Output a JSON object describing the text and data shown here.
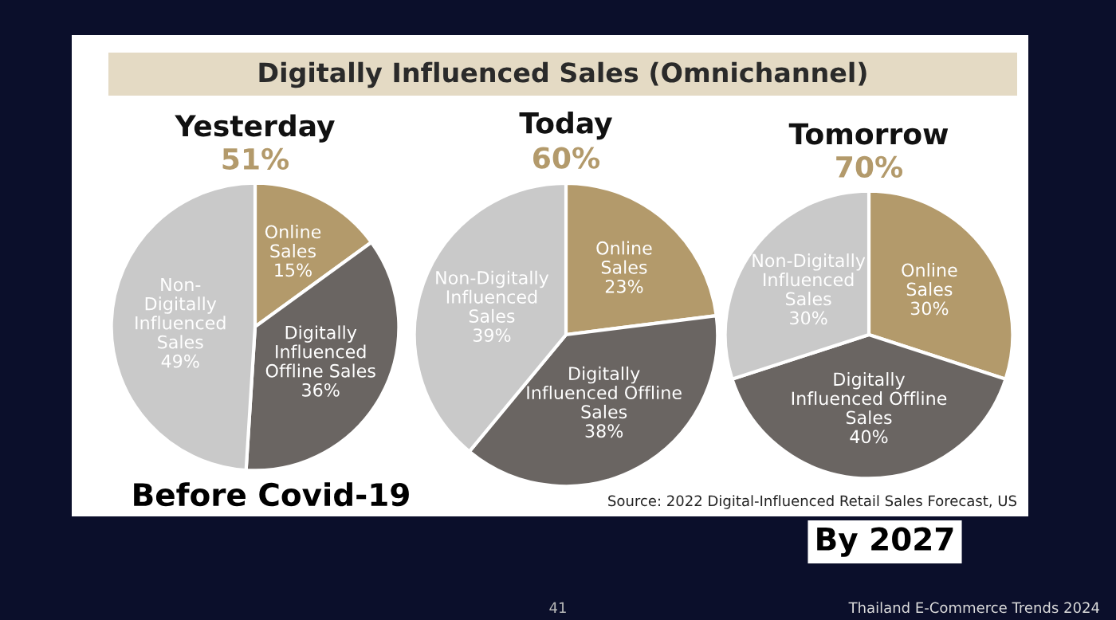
{
  "chart_data": [
    {
      "type": "other",
      "title": "Digitally Influenced Sales (Omnichannel)",
      "annotations": [
        "Source: 2022 Digital-Influenced Retail Sales Forecast, US",
        "41",
        "Thailand E-Commerce Trends 2024"
      ]
    },
    {
      "type": "pie",
      "title": "Yesterday",
      "subtitle": "51%",
      "categories": [
        "Online\nSales",
        "Digitally\nInfluenced\nOffline Sales",
        "Non-\nDigitally\nInfluenced\nSales"
      ],
      "values": [
        15,
        36,
        49
      ],
      "value_labels": [
        "15%",
        "36%",
        "49%"
      ],
      "colors": [
        "#b39a6b",
        "#6a6562",
        "#c9c9c9"
      ],
      "annotations": [
        "Before Covid-19"
      ]
    },
    {
      "type": "pie",
      "title": "Today",
      "subtitle": "60%",
      "categories": [
        "Online\nSales",
        "Digitally\nInfluenced Offline\nSales",
        "Non-Digitally\nInfluenced\nSales"
      ],
      "values": [
        23,
        38,
        39
      ],
      "value_labels": [
        "23%",
        "38%",
        "39%"
      ],
      "colors": [
        "#b39a6b",
        "#6a6562",
        "#c9c9c9"
      ]
    },
    {
      "type": "pie",
      "title": "Tomorrow",
      "subtitle": "70%",
      "categories": [
        "Online\nSales",
        "Digitally\nInfluenced Offline\nSales",
        "Non-Digitally\nInfluenced\nSales"
      ],
      "values": [
        30,
        40,
        30
      ],
      "value_labels": [
        "30%",
        "40%",
        "30%"
      ],
      "colors": [
        "#b39a6b",
        "#6a6562",
        "#c9c9c9"
      ],
      "annotations": [
        "By 2027"
      ]
    }
  ]
}
